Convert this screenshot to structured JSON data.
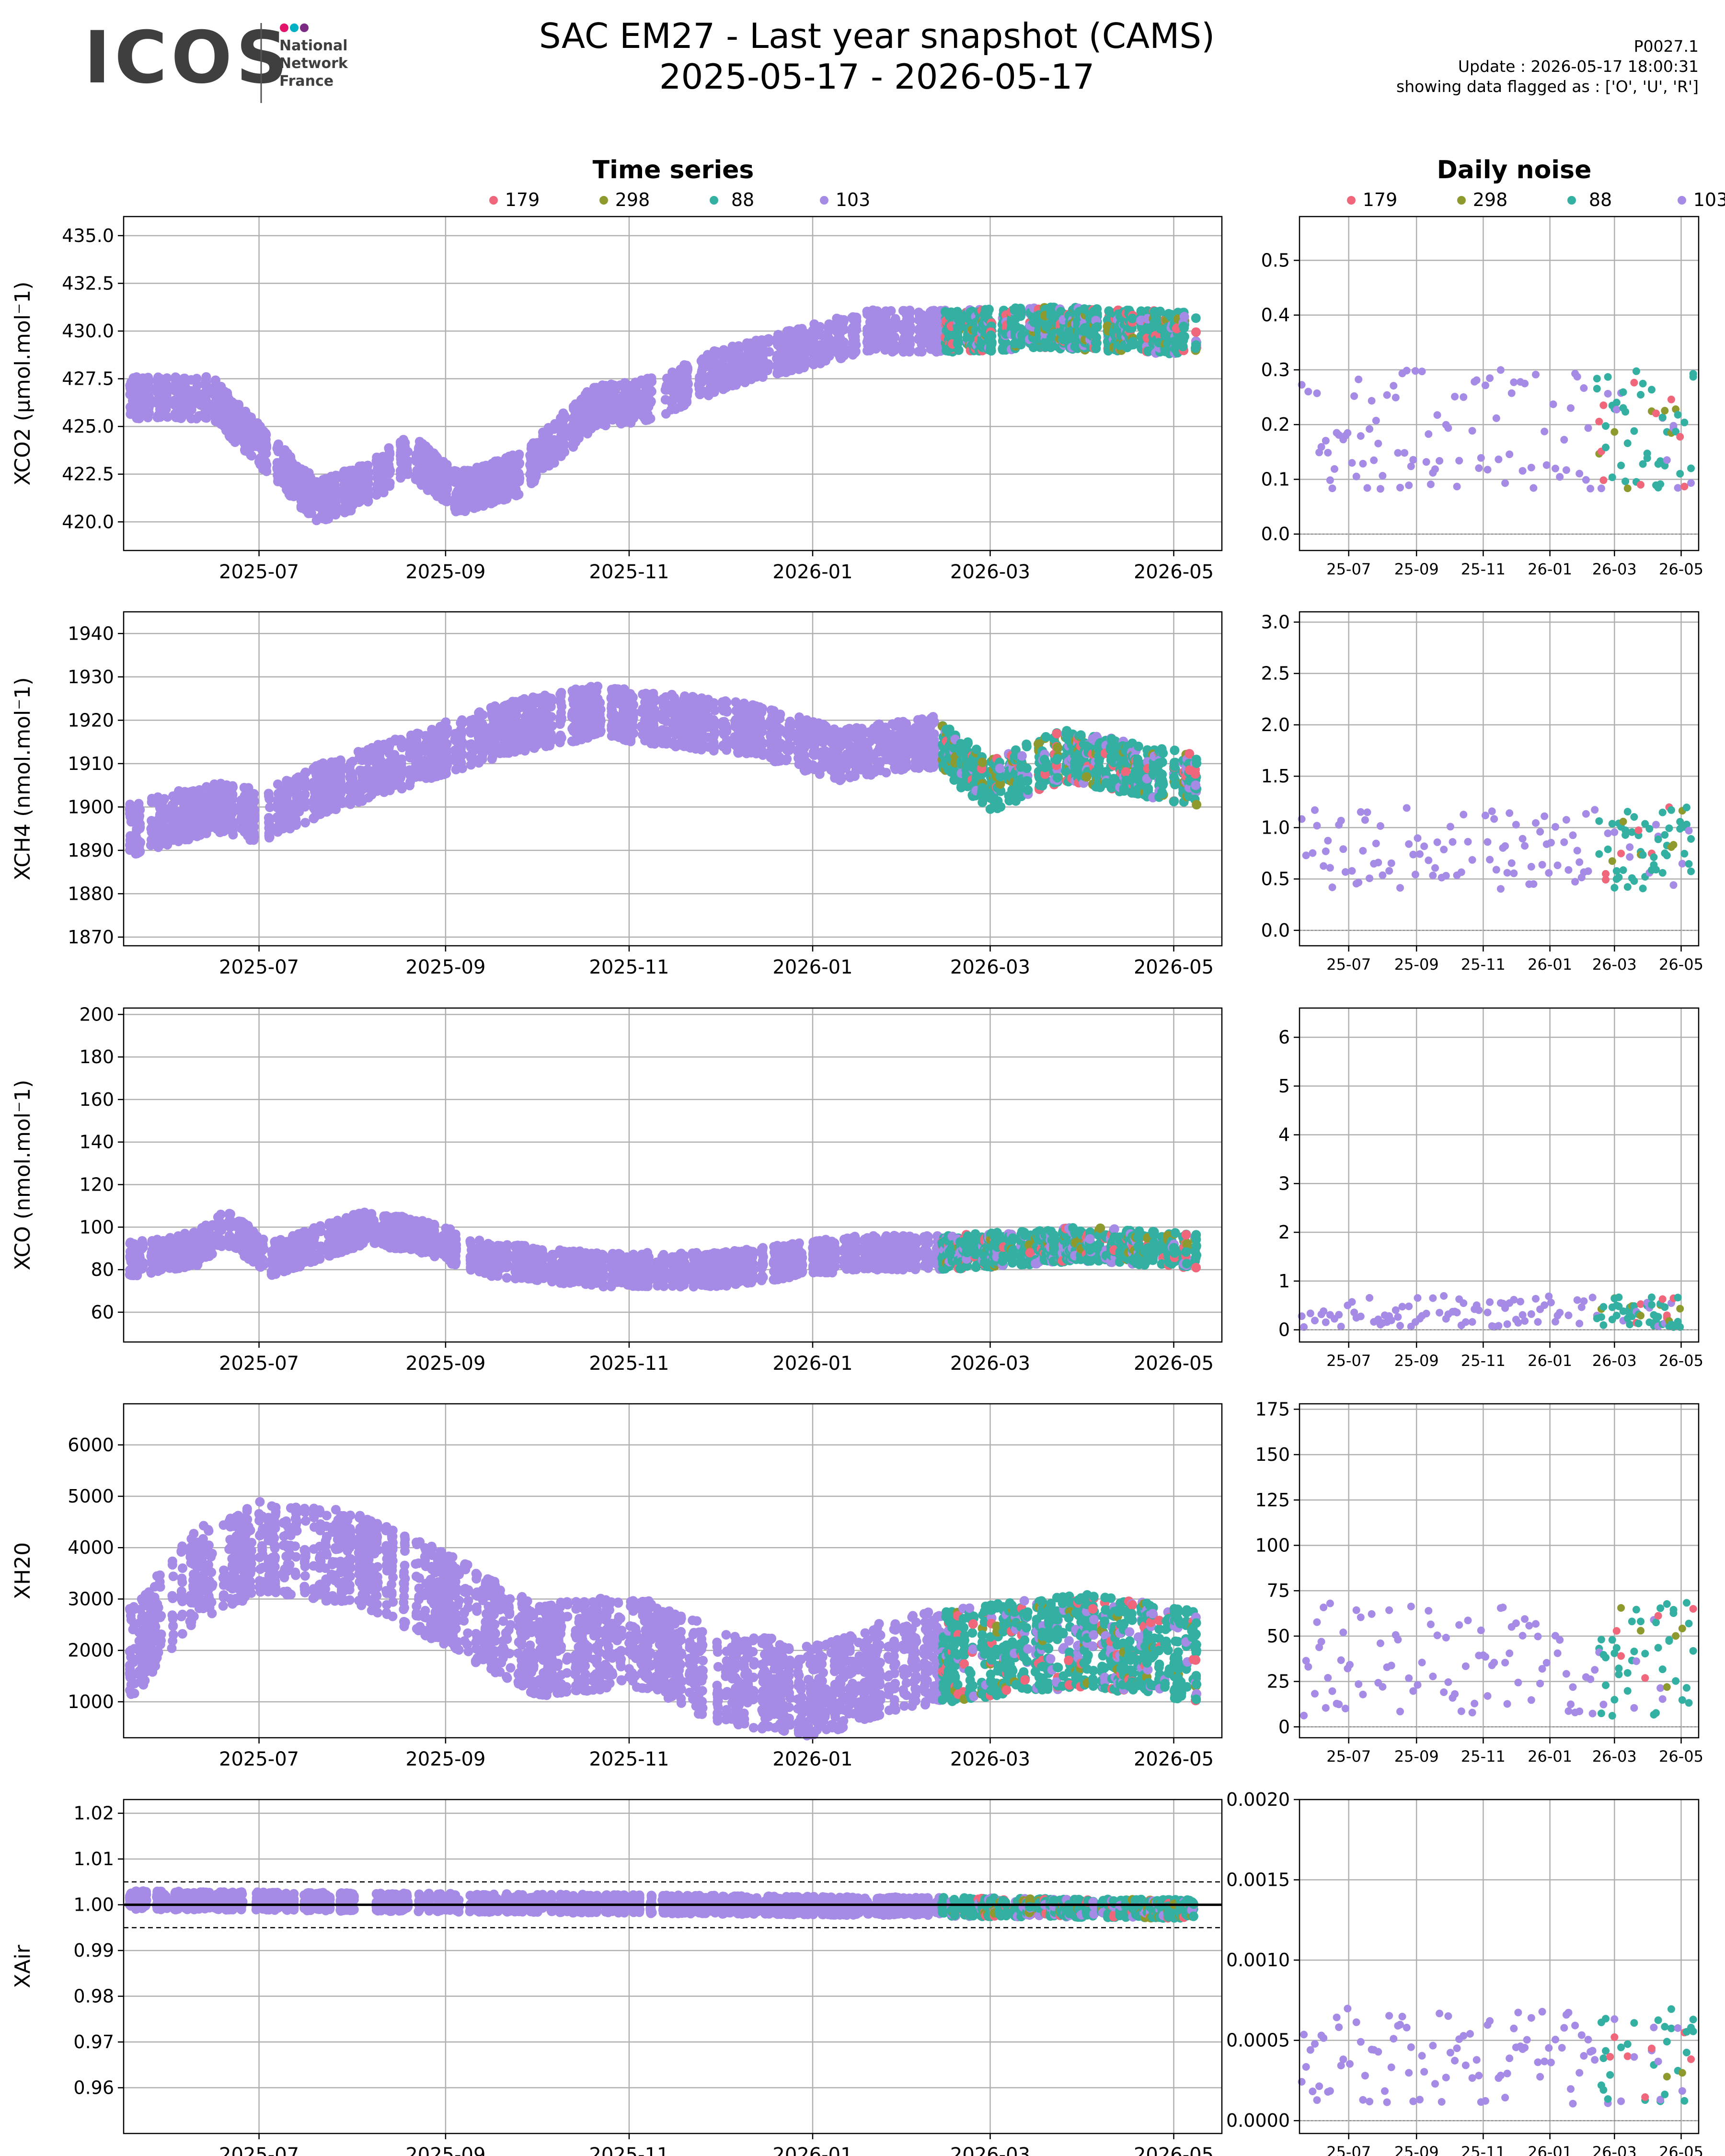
{
  "header": {
    "logo_text": "ICOS",
    "logo_sub": [
      "National",
      "Network",
      "France"
    ],
    "logo_dot_colors": [
      "#e2156b",
      "#00b1c5",
      "#7c2b84"
    ],
    "title_line1": "SAC EM27 - Last year snapshot (CAMS)",
    "title_line2": "2025-05-17 - 2026-05-17",
    "info_version": "P0027.1",
    "info_update": "Update : 2026-05-17 18:00:31",
    "info_flags": "showing data flagged as : ['O', 'U', 'R']"
  },
  "colors": {
    "s179": "#f0667a",
    "s298": "#8f9a2e",
    "s88": "#33b0a2",
    "s103": "#a58ae6",
    "grid": "#b0b0b0"
  },
  "chart_data": {
    "type": "scatter",
    "column_titles": {
      "left": "Time series",
      "right": "Daily noise"
    },
    "legend": {
      "placement": "top-center",
      "entries": [
        "179",
        "298",
        "88",
        "103"
      ]
    },
    "x_date_range": [
      "2025-05-17",
      "2026-05-17"
    ],
    "x_ticks_left": [
      "2025-07",
      "2025-09",
      "2025-11",
      "2026-01",
      "2026-03",
      "2026-05"
    ],
    "x_ticks_right": [
      "25-07",
      "25-09",
      "25-11",
      "26-01",
      "26-03",
      "26-05"
    ],
    "grid": true,
    "rows": [
      {
        "ylabel": "XCO2 (µmol.mol⁻1)",
        "ylim": [
          418.5,
          436.0
        ],
        "yticks": [
          "420.0",
          "422.5",
          "425.0",
          "427.5",
          "430.0",
          "432.5",
          "435.0"
        ],
        "noise_ylim": [
          -0.03,
          0.58
        ],
        "noise_yticks": [
          "0.0",
          "0.1",
          "0.2",
          "0.3",
          "0.4",
          "0.5"
        ],
        "trend": [
          [
            "2025-05-20",
            426.5
          ],
          [
            "2025-06-15",
            426.5
          ],
          [
            "2025-07-01",
            424.0
          ],
          [
            "2025-07-20",
            421.0
          ],
          [
            "2025-08-05",
            422.0
          ],
          [
            "2025-08-20",
            423.5
          ],
          [
            "2025-09-05",
            421.5
          ],
          [
            "2025-09-25",
            422.5
          ],
          [
            "2025-10-20",
            426.0
          ],
          [
            "2025-11-10",
            426.5
          ],
          [
            "2025-12-01",
            428.0
          ],
          [
            "2025-12-25",
            429.0
          ],
          [
            "2026-01-20",
            430.0
          ],
          [
            "2026-02-20",
            430.0
          ],
          [
            "2026-03-20",
            430.2
          ],
          [
            "2026-05-17",
            429.8
          ]
        ],
        "trend_spread": 1.1,
        "noise_band": [
          0.08,
          0.3
        ]
      },
      {
        "ylabel": "XCH4 (nmol.mol⁻1)",
        "ylim": [
          1868,
          1945
        ],
        "yticks": [
          "1870",
          "1880",
          "1890",
          "1900",
          "1910",
          "1920",
          "1930",
          "1940"
        ],
        "noise_ylim": [
          -0.15,
          3.1
        ],
        "noise_yticks": [
          "0.0",
          "0.5",
          "1.0",
          "1.5",
          "2.0",
          "2.5",
          "3.0"
        ],
        "trend": [
          [
            "2025-05-20",
            1895
          ],
          [
            "2025-06-15",
            1900
          ],
          [
            "2025-07-01",
            1898
          ],
          [
            "2025-07-25",
            1905
          ],
          [
            "2025-08-25",
            1912
          ],
          [
            "2025-09-20",
            1918
          ],
          [
            "2025-10-20",
            1922
          ],
          [
            "2025-11-15",
            1920
          ],
          [
            "2025-12-10",
            1918
          ],
          [
            "2026-01-10",
            1912
          ],
          [
            "2026-02-10",
            1915
          ],
          [
            "2026-03-01",
            1905
          ],
          [
            "2026-03-25",
            1912
          ],
          [
            "2026-05-17",
            1905
          ]
        ],
        "trend_spread": 6,
        "noise_band": [
          0.4,
          1.2
        ]
      },
      {
        "ylabel": "XCO (nmol.mol⁻1)",
        "ylim": [
          46,
          203
        ],
        "yticks": [
          "60",
          "80",
          "100",
          "120",
          "140",
          "160",
          "180",
          "200"
        ],
        "noise_ylim": [
          -0.25,
          6.6
        ],
        "noise_yticks": [
          "0",
          "1",
          "2",
          "3",
          "4",
          "5",
          "6"
        ],
        "trend": [
          [
            "2025-05-20",
            85
          ],
          [
            "2025-06-10",
            90
          ],
          [
            "2025-06-20",
            100
          ],
          [
            "2025-07-05",
            85
          ],
          [
            "2025-08-05",
            100
          ],
          [
            "2025-08-25",
            95
          ],
          [
            "2025-09-15",
            85
          ],
          [
            "2025-10-20",
            80
          ],
          [
            "2025-12-01",
            80
          ],
          [
            "2026-01-15",
            88
          ],
          [
            "2026-02-15",
            88
          ],
          [
            "2026-04-01",
            92
          ],
          [
            "2026-05-17",
            88
          ]
        ],
        "trend_spread": 8,
        "noise_band": [
          0.05,
          0.7
        ]
      },
      {
        "ylabel": "XH20",
        "ylim": [
          300,
          6800
        ],
        "yticks": [
          "1000",
          "2000",
          "3000",
          "4000",
          "5000",
          "6000"
        ],
        "noise_ylim": [
          -6,
          178
        ],
        "noise_yticks": [
          "0",
          "25",
          "50",
          "75",
          "100",
          "125",
          "150",
          "175"
        ],
        "trend": [
          [
            "2025-05-20",
            2000
          ],
          [
            "2025-06-10",
            3500
          ],
          [
            "2025-07-01",
            4000
          ],
          [
            "2025-08-01",
            3800
          ],
          [
            "2025-09-01",
            3000
          ],
          [
            "2025-10-01",
            2000
          ],
          [
            "2025-11-01",
            2200
          ],
          [
            "2025-12-01",
            1500
          ],
          [
            "2026-01-01",
            1200
          ],
          [
            "2026-02-01",
            1800
          ],
          [
            "2026-03-01",
            2000
          ],
          [
            "2026-04-01",
            2200
          ],
          [
            "2026-05-17",
            1800
          ]
        ],
        "trend_spread": 900,
        "noise_band": [
          5,
          70
        ]
      },
      {
        "ylabel": "XAir",
        "ylim": [
          0.95,
          1.023
        ],
        "yticks": [
          "0.96",
          "0.97",
          "0.98",
          "0.99",
          "1.00",
          "1.01",
          "1.02"
        ],
        "noise_ylim": [
          -8e-05,
          0.002
        ],
        "noise_yticks": [
          "0.0000",
          "0.0005",
          "0.0010",
          "0.0015",
          "0.0020"
        ],
        "reference_line": 1.0,
        "band_lines": [
          0.995,
          1.005
        ],
        "trend": [
          [
            "2025-05-20",
            1.001
          ],
          [
            "2025-12-01",
            1.0
          ],
          [
            "2026-05-17",
            0.999
          ]
        ],
        "trend_spread": 0.002,
        "noise_band": [
          0.0001,
          0.0007
        ]
      }
    ]
  }
}
